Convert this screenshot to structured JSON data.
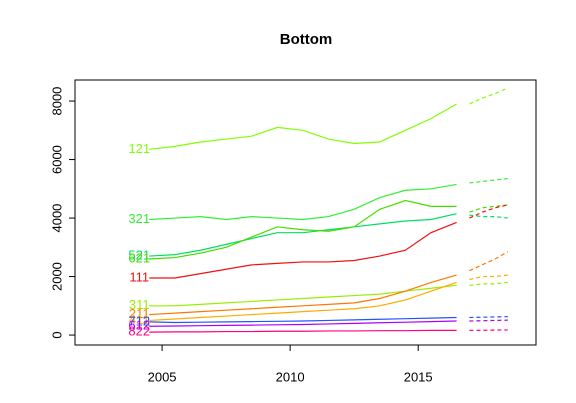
{
  "chart_data": {
    "type": "line",
    "title": "Bottom",
    "x": [
      2004.5,
      2005.5,
      2006.5,
      2007.5,
      2008.5,
      2009.5,
      2010.5,
      2011.5,
      2012.5,
      2013.5,
      2014.5,
      2015.5,
      2016.5
    ],
    "forecast_x": [
      2017,
      2017.5,
      2018,
      2018.5
    ],
    "xlim": [
      2001.6,
      2019.6
    ],
    "xticks": [
      2005,
      2010,
      2015
    ],
    "ylim": [
      -340,
      8720
    ],
    "yticks": [
      0,
      2000,
      4000,
      6000,
      8000
    ],
    "series": [
      {
        "name": "121",
        "color": "#80ff00",
        "values": [
          6350,
          6450,
          6600,
          6700,
          6800,
          7100,
          7000,
          6700,
          6550,
          6600,
          7000,
          7400,
          7900
        ],
        "forecast": [
          7900,
          8100,
          8250,
          8450
        ]
      },
      {
        "name": "321",
        "color": "#33ee33",
        "values": [
          3950,
          4000,
          4050,
          3950,
          4050,
          4000,
          3950,
          4050,
          4300,
          4700,
          4950,
          5000,
          5150
        ],
        "forecast": [
          5200,
          5250,
          5300,
          5350
        ]
      },
      {
        "name": "521",
        "color": "#00e060",
        "values": [
          2700,
          2750,
          2900,
          3100,
          3300,
          3500,
          3500,
          3600,
          3700,
          3800,
          3900,
          3950,
          4150
        ],
        "forecast": [
          4100,
          4050,
          4050,
          4000
        ]
      },
      {
        "name": "621",
        "color": "#44dd00",
        "values": [
          2600,
          2650,
          2800,
          3000,
          3350,
          3700,
          3600,
          3550,
          3700,
          4300,
          4600,
          4400,
          4400
        ],
        "forecast": [
          4200,
          4350,
          4400,
          4450
        ]
      },
      {
        "name": "111",
        "color": "#ee1111",
        "values": [
          1950,
          1950,
          2100,
          2250,
          2400,
          2450,
          2500,
          2500,
          2550,
          2700,
          2900,
          3500,
          3850
        ],
        "forecast": [
          4000,
          4200,
          4350,
          4450
        ]
      },
      {
        "name": "311",
        "color": "#99ee00",
        "values": [
          1000,
          1000,
          1050,
          1100,
          1150,
          1200,
          1250,
          1300,
          1350,
          1400,
          1500,
          1600,
          1700
        ],
        "forecast": [
          1700,
          1750,
          1750,
          1800
        ]
      },
      {
        "name": "211",
        "color": "#ff7700",
        "values": [
          700,
          750,
          800,
          850,
          900,
          950,
          1000,
          1050,
          1100,
          1250,
          1500,
          1800,
          2050
        ],
        "forecast": [
          2200,
          2400,
          2600,
          2850
        ]
      },
      {
        "name": "411",
        "color": "#ffaa00",
        "values": [
          500,
          550,
          600,
          650,
          700,
          750,
          800,
          850,
          900,
          1000,
          1200,
          1500,
          1800
        ],
        "forecast": [
          1900,
          2000,
          2000,
          2050
        ]
      },
      {
        "name": "712",
        "color": "#2255ff",
        "values": [
          450,
          430,
          440,
          450,
          460,
          470,
          480,
          500,
          520,
          540,
          560,
          580,
          600
        ],
        "forecast": [
          600,
          610,
          620,
          630
        ]
      },
      {
        "name": "612",
        "color": "#aa00ff",
        "values": [
          300,
          310,
          320,
          330,
          340,
          350,
          360,
          380,
          400,
          420,
          440,
          460,
          480
        ],
        "forecast": [
          480,
          490,
          500,
          510
        ]
      },
      {
        "name": "822",
        "color": "#ff0080",
        "values": [
          100,
          110,
          110,
          120,
          120,
          130,
          130,
          140,
          140,
          150,
          150,
          160,
          160
        ],
        "forecast": [
          160,
          165,
          170,
          175
        ]
      }
    ]
  }
}
